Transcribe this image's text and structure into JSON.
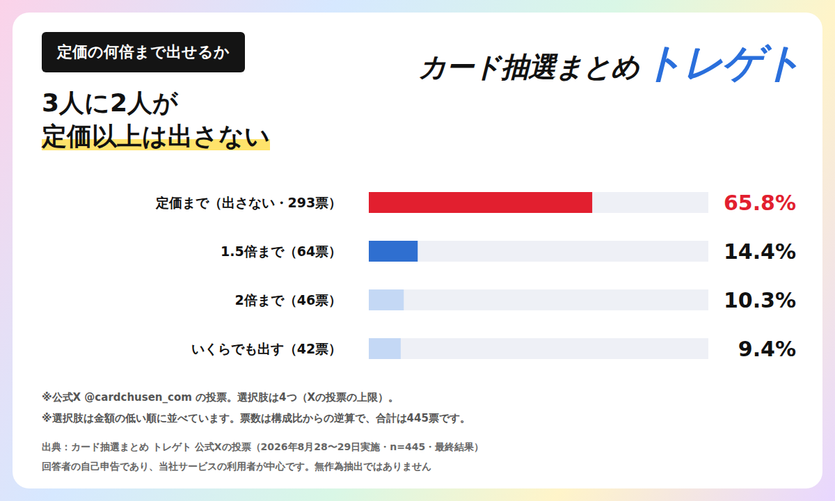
{
  "chart_data": {
    "type": "bar",
    "orientation": "horizontal",
    "title": "定価の何倍まで出せるか",
    "subtitle": [
      "3人に2人が",
      "定価以上は出さない"
    ],
    "categories": [
      "定価まで（出さない・293票）",
      "1.5倍まで（64票）",
      "2倍まで（46票）",
      "いくらでも出す（42票）"
    ],
    "values": [
      65.8,
      14.4,
      10.3,
      9.4
    ],
    "value_labels": [
      "65.8%",
      "14.4%",
      "10.3%",
      "9.4%"
    ],
    "colors": [
      "#e21f2f",
      "#2f6fd0",
      "#c4d8f5",
      "#c4d8f5"
    ],
    "xlim": [
      0,
      100
    ],
    "data_labels": true,
    "tick_labels": "y",
    "grid": false
  },
  "logo": [
    "カード抽選まとめ",
    "トレゲト"
  ],
  "notes": [
    "※公式X @cardchusen_com の投票。選択肢は4つ（Xの投票の上限）。",
    "※選択肢は金額の低い順に並べています。票数は構成比からの逆算で、合計は445票です。"
  ],
  "source": [
    "出典：カード抽選まとめ トレゲト 公式Xの投票（2026年8月28〜29日実施・n=445・最終結果）",
    "回答者の自己申告であり、当社サービスの利用者が中心です。無作為抽出ではありません"
  ]
}
